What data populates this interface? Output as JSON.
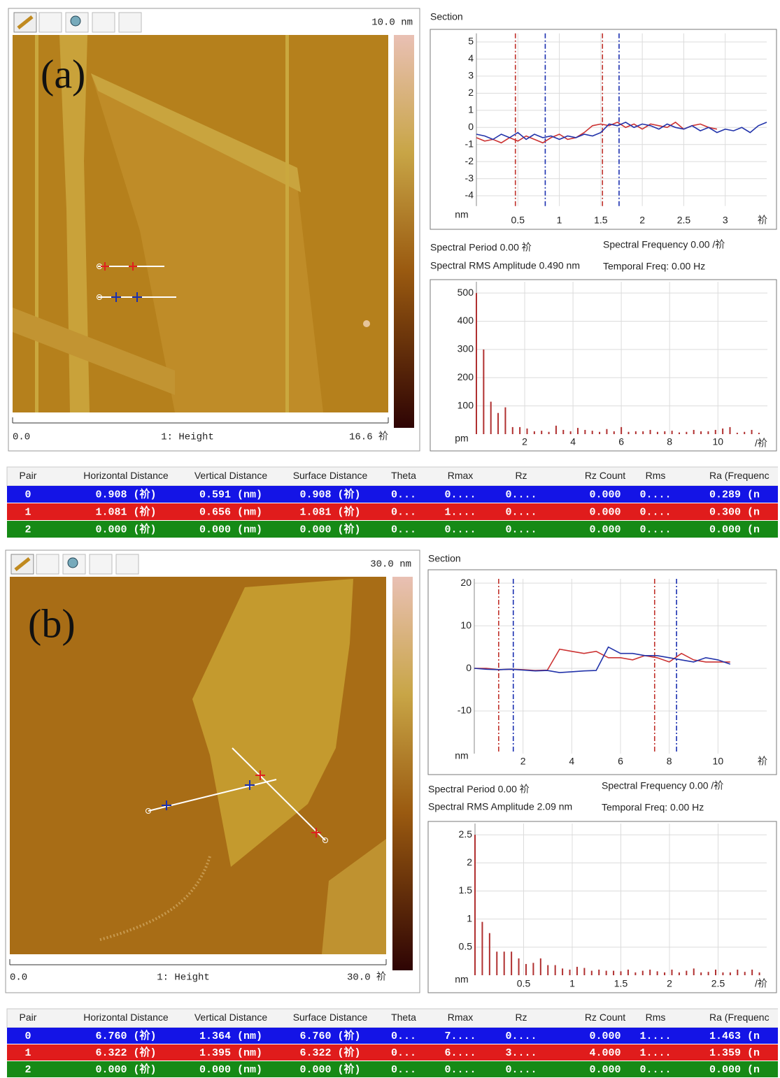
{
  "panels": [
    {
      "label": "(a)",
      "image": {
        "zscale": "10.0 nm",
        "x_start": "0.0",
        "channel": "1: Height",
        "x_end": "16.6 祄"
      },
      "section": {
        "title": "Section",
        "type": "line",
        "x": [
          0,
          0.1,
          0.2,
          0.3,
          0.4,
          0.5,
          0.6,
          0.7,
          0.8,
          0.9,
          1,
          1.1,
          1.2,
          1.3,
          1.4,
          1.5,
          1.6,
          1.7,
          1.8,
          1.9,
          2,
          2.1,
          2.2,
          2.3,
          2.4,
          2.5,
          2.6,
          2.7,
          2.8,
          2.9,
          3,
          3.1,
          3.2,
          3.3,
          3.4,
          3.5
        ],
        "xlim": [
          0,
          3.5
        ],
        "xticks": [
          0.5,
          1,
          1.5,
          2,
          2.5,
          3
        ],
        "ylim": [
          -4.6,
          5.5
        ],
        "yticks": [
          5,
          4,
          3,
          2,
          1,
          0,
          -1,
          -2,
          -3,
          -4
        ],
        "y_unit": "nm",
        "x_unit": "祄",
        "cursors": [
          {
            "color": "#c0302a",
            "x": 0.47
          },
          {
            "color": "#1a2fb0",
            "x": 0.83
          },
          {
            "color": "#c0302a",
            "x": 1.52
          },
          {
            "color": "#1a2fb0",
            "x": 1.72
          }
        ],
        "series": [
          {
            "color": "#cc3333",
            "values": [
              -0.6,
              -0.8,
              -0.7,
              -0.9,
              -0.6,
              -0.8,
              -0.5,
              -0.7,
              -0.9,
              -0.6,
              -0.4,
              -0.7,
              -0.6,
              -0.3,
              0.1,
              0.2,
              0.1,
              0.3,
              0.0,
              0.2,
              -0.1,
              0.2,
              0.1,
              0.0,
              0.3,
              -0.1,
              0.1,
              0.2,
              0.0,
              -0.1,
              null,
              null,
              null,
              null,
              null,
              null
            ]
          },
          {
            "color": "#2233aa",
            "values": [
              -0.4,
              -0.5,
              -0.7,
              -0.4,
              -0.6,
              -0.3,
              -0.7,
              -0.4,
              -0.6,
              -0.5,
              -0.7,
              -0.5,
              -0.6,
              -0.4,
              -0.5,
              -0.3,
              0.2,
              0.1,
              0.3,
              0.0,
              0.2,
              0.1,
              -0.1,
              0.2,
              0.0,
              -0.1,
              0.1,
              -0.2,
              0.0,
              -0.3,
              -0.1,
              -0.2,
              0.0,
              -0.3,
              0.1,
              0.3
            ]
          }
        ]
      },
      "spectral": {
        "period": "Spectral Period 0.00 祄",
        "frequency": "Spectral Frequency 0.00 /祄",
        "rms": "Spectral RMS Amplitude 0.490 nm",
        "temporal": "Temporal Freq: 0.00 Hz"
      },
      "spectrum": {
        "type": "bar",
        "color": "#b03030",
        "x": [
          0,
          0.3,
          0.6,
          0.9,
          1.2,
          1.5,
          1.8,
          2.1,
          2.4,
          2.7,
          3,
          3.3,
          3.6,
          3.9,
          4.2,
          4.5,
          4.8,
          5.1,
          5.4,
          5.7,
          6,
          6.3,
          6.6,
          6.9,
          7.2,
          7.5,
          7.8,
          8.1,
          8.4,
          8.7,
          9,
          9.3,
          9.6,
          9.9,
          10.2,
          10.5,
          10.8,
          11.1,
          11.4,
          11.7
        ],
        "values": [
          500,
          300,
          115,
          75,
          95,
          25,
          25,
          20,
          10,
          12,
          8,
          30,
          15,
          10,
          22,
          15,
          12,
          8,
          18,
          10,
          25,
          8,
          10,
          10,
          15,
          8,
          10,
          12,
          6,
          8,
          15,
          10,
          10,
          15,
          20,
          25,
          5,
          8,
          15,
          5
        ],
        "xlim": [
          0,
          12.05
        ],
        "xticks": [
          2,
          4,
          6,
          8,
          10
        ],
        "ylim": [
          0,
          540
        ],
        "yticks": [
          100,
          200,
          300,
          400,
          500
        ],
        "y_unit": "pm",
        "x_unit": "/祄"
      },
      "table": {
        "columns": [
          "Pair",
          "Horizontal Distance",
          "Vertical Distance",
          "Surface Distance",
          "Theta",
          "Rmax",
          "Rz",
          "Rz Count",
          "Rms",
          "Ra (Frequenc"
        ],
        "rows": [
          {
            "color": "#1414e6",
            "cells": [
              "0",
              "0.908 (祄)",
              "0.591 (nm)",
              "0.908 (祄)",
              "0...",
              "0....",
              "0....",
              "0.000",
              "0....",
              "0.289 (n"
            ]
          },
          {
            "color": "#e01c1c",
            "cells": [
              "1",
              "1.081 (祄)",
              "0.656 (nm)",
              "1.081 (祄)",
              "0...",
              "1....",
              "0....",
              "0.000",
              "0....",
              "0.300 (n"
            ]
          },
          {
            "color": "#168a16",
            "cells": [
              "2",
              "0.000 (祄)",
              "0.000 (nm)",
              "0.000 (祄)",
              "0...",
              "0....",
              "0....",
              "0.000",
              "0....",
              "0.000 (n"
            ]
          }
        ]
      }
    },
    {
      "label": "(b)",
      "image": {
        "zscale": "30.0 nm",
        "x_start": "0.0",
        "channel": "1: Height",
        "x_end": "30.0 祄"
      },
      "section": {
        "title": "Section",
        "type": "line",
        "x": [
          0,
          0.5,
          1,
          1.5,
          2,
          2.5,
          3,
          3.5,
          4,
          4.5,
          5,
          5.5,
          6,
          6.5,
          7,
          7.5,
          8,
          8.5,
          9,
          9.5,
          10,
          10.5
        ],
        "xlim": [
          0,
          12
        ],
        "xticks": [
          2,
          4,
          6,
          8,
          10
        ],
        "ylim": [
          -20,
          21
        ],
        "yticks": [
          20,
          10,
          0,
          -10
        ],
        "y_unit": "nm",
        "x_unit": "祄",
        "cursors": [
          {
            "color": "#c0302a",
            "x": 1.0
          },
          {
            "color": "#1a2fb0",
            "x": 1.6
          },
          {
            "color": "#c0302a",
            "x": 7.4
          },
          {
            "color": "#1a2fb0",
            "x": 8.3
          }
        ],
        "series": [
          {
            "color": "#cc3333",
            "values": [
              0,
              0,
              -0.3,
              -0.2,
              -0.3,
              -0.5,
              -0.4,
              4.5,
              4,
              3.5,
              4,
              2.5,
              2.5,
              2,
              3,
              2.5,
              1.5,
              3.5,
              2,
              1.5,
              1.5,
              1.5
            ]
          },
          {
            "color": "#2233aa",
            "values": [
              0,
              -0.2,
              -0.3,
              -0.2,
              -0.4,
              -0.6,
              -0.5,
              -1,
              -0.8,
              -0.6,
              -0.5,
              5,
              3.5,
              3.5,
              3,
              3,
              2.5,
              2,
              1.5,
              2.5,
              2,
              1
            ]
          }
        ]
      },
      "spectral": {
        "period": "Spectral Period 0.00 祄",
        "frequency": "Spectral Frequency 0.00 /祄",
        "rms": "Spectral RMS Amplitude 2.09 nm",
        "temporal": "Temporal Freq: 0.00 Hz"
      },
      "spectrum": {
        "type": "bar",
        "color": "#b03030",
        "x": [
          0,
          0.075,
          0.15,
          0.225,
          0.3,
          0.375,
          0.45,
          0.525,
          0.6,
          0.675,
          0.75,
          0.825,
          0.9,
          0.975,
          1.05,
          1.125,
          1.2,
          1.275,
          1.35,
          1.425,
          1.5,
          1.575,
          1.65,
          1.725,
          1.8,
          1.875,
          1.95,
          2.025,
          2.1,
          2.175,
          2.25,
          2.325,
          2.4,
          2.475,
          2.55,
          2.625,
          2.7,
          2.775,
          2.85,
          2.925
        ],
        "values": [
          2.5,
          0.95,
          0.75,
          0.42,
          0.42,
          0.42,
          0.3,
          0.2,
          0.22,
          0.3,
          0.18,
          0.18,
          0.12,
          0.1,
          0.15,
          0.13,
          0.08,
          0.1,
          0.08,
          0.08,
          0.07,
          0.1,
          0.05,
          0.08,
          0.1,
          0.07,
          0.05,
          0.1,
          0.05,
          0.08,
          0.12,
          0.05,
          0.06,
          0.1,
          0.05,
          0.05,
          0.1,
          0.06,
          0.1,
          0.05
        ],
        "xlim": [
          0,
          3
        ],
        "xticks": [
          0.5,
          1,
          1.5,
          2,
          2.5
        ],
        "ylim": [
          0,
          2.7
        ],
        "yticks": [
          2.5,
          2,
          1.5,
          1,
          0.5
        ],
        "y_unit": "nm",
        "x_unit": "/祄"
      },
      "table": {
        "columns": [
          "Pair",
          "Horizontal Distance",
          "Vertical Distance",
          "Surface Distance",
          "Theta",
          "Rmax",
          "Rz",
          "Rz Count",
          "Rms",
          "Ra (Frequenc"
        ],
        "rows": [
          {
            "color": "#1414e6",
            "cells": [
              "0",
              "6.760 (祄)",
              "1.364 (nm)",
              "6.760 (祄)",
              "0...",
              "7....",
              "0....",
              "0.000",
              "1....",
              "1.463 (n"
            ]
          },
          {
            "color": "#e01c1c",
            "cells": [
              "1",
              "6.322 (祄)",
              "1.395 (nm)",
              "6.322 (祄)",
              "0...",
              "6....",
              "3....",
              "4.000",
              "1....",
              "1.359 (n"
            ]
          },
          {
            "color": "#168a16",
            "cells": [
              "2",
              "0.000 (祄)",
              "0.000 (nm)",
              "0.000 (祄)",
              "0...",
              "0....",
              "0....",
              "0.000",
              "0....",
              "0.000 (n"
            ]
          }
        ]
      }
    }
  ]
}
